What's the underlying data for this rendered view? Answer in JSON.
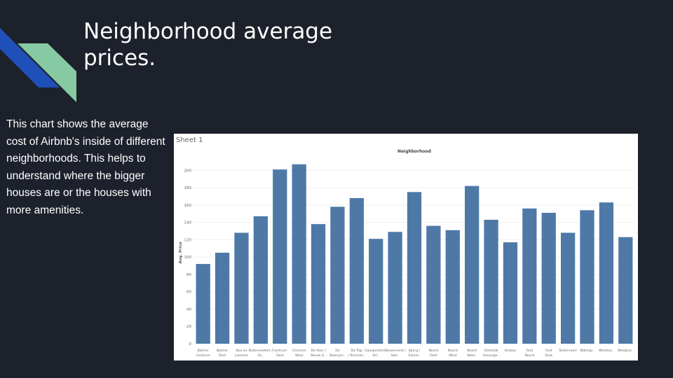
{
  "slide": {
    "title": "Neighborhood average prices.",
    "description": "This chart shows the average cost of Airbnb's inside of different neighborhoods. This helps to understand where the bigger houses are or the houses with more amenities."
  },
  "colors": {
    "background": "#1c212b",
    "accent_blue": "#1f4fb8",
    "accent_green": "#86c9a2",
    "bar": "#4e79a7"
  },
  "chart_data": {
    "type": "bar",
    "sheet_label": "Sheet 1",
    "title": "Neighborhood",
    "xlabel": "",
    "ylabel": "Avg. Price",
    "ylim": [
      0,
      210
    ],
    "yticks": [
      0,
      20,
      40,
      60,
      80,
      100,
      120,
      140,
      160,
      180,
      200
    ],
    "grid": true,
    "categories": [
      "Bijlmer-Centrum",
      "Bijlmer-Oost",
      "Bos en Lommer",
      "Buitenveldert / Zu..",
      "Centrum-Oost",
      "Centrum-West",
      "De Aker / Nieuw S..",
      "De Baarsjes..",
      "De Pijp / Rivieren..",
      "Gaasperdam / Dri..",
      "Geuzenveld / Slot..",
      "IJburg / Eiland..",
      "Noord-Oost",
      "Noord-West",
      "Noord-West..",
      "Oostelijk Havenge..",
      "Osdorp",
      "Oud-Noord",
      "Oud-Oost",
      "Slotervaart",
      "Watergr..",
      "Westerp..",
      "Westpoo.."
    ],
    "values": [
      92,
      105,
      128,
      147,
      201,
      207,
      138,
      158,
      168,
      121,
      129,
      175,
      136,
      131,
      182,
      143,
      117,
      156,
      151,
      128,
      154,
      163,
      123
    ]
  }
}
